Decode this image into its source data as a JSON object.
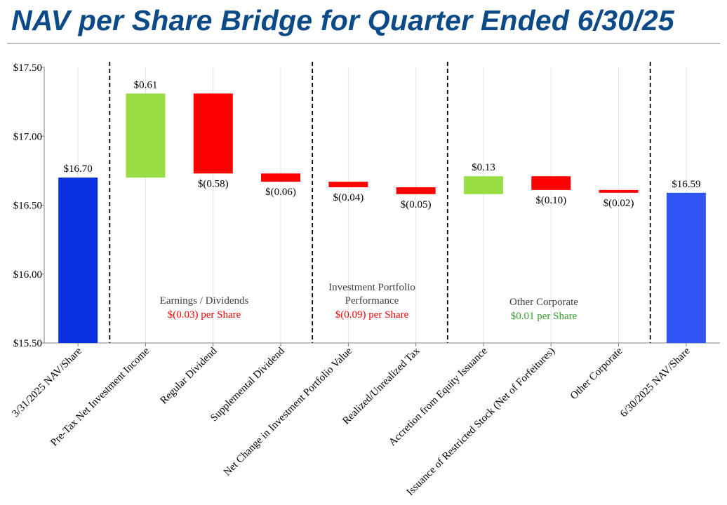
{
  "title": "NAV per Share Bridge for Quarter Ended 6/30/25",
  "chart_data": {
    "type": "waterfall",
    "title": "NAV per Share Bridge for Quarter Ended 6/30/25",
    "xlabel": "",
    "ylabel": "",
    "ylim": [
      15.5,
      17.5
    ],
    "yticks": [
      {
        "value": 15.5,
        "label": "$15.50"
      },
      {
        "value": 16.0,
        "label": "$16.00"
      },
      {
        "value": 16.5,
        "label": "$16.50"
      },
      {
        "value": 17.0,
        "label": "$17.00"
      },
      {
        "value": 17.5,
        "label": "$17.50"
      }
    ],
    "bars": [
      {
        "category": "3/31/2025 NAV/Share",
        "kind": "total",
        "value": 16.7,
        "label": "$16.70"
      },
      {
        "category": "Pre-Tax Net Investment Income",
        "kind": "delta",
        "value": 0.61,
        "label": "$0.61"
      },
      {
        "category": "Regular Dividend",
        "kind": "delta",
        "value": -0.58,
        "label": "$(0.58)"
      },
      {
        "category": "Supplemental Dividend",
        "kind": "delta",
        "value": -0.06,
        "label": "$(0.06)"
      },
      {
        "category": "Net Change in Investment Portfolio Value",
        "kind": "delta",
        "value": -0.04,
        "label": "$(0.04)"
      },
      {
        "category": "Realized/Unrealized Tax",
        "kind": "delta",
        "value": -0.05,
        "label": "$(0.05)"
      },
      {
        "category": "Accretion from Equity Issuance",
        "kind": "delta",
        "value": 0.13,
        "label": "$0.13"
      },
      {
        "category": "Issuance of Restricted Stock (Net of Forfeitures)",
        "kind": "delta",
        "value": -0.1,
        "label": "$(0.10)"
      },
      {
        "category": "Other Corporate",
        "kind": "delta",
        "value": -0.02,
        "label": "$(0.02)"
      },
      {
        "category": "6/30/2025 NAV/Share",
        "kind": "total",
        "value": 16.59,
        "label": "$16.59"
      }
    ],
    "groups": [
      {
        "name": "Earnings / Dividends",
        "summary": "$(0.03) per Share",
        "summary_color": "#ff0000"
      },
      {
        "name": "Investment Portfolio Performance",
        "summary": "$(0.09) per Share",
        "summary_color": "#ff0000"
      },
      {
        "name": "Other Corporate",
        "summary": "$0.01 per Share",
        "summary_color": "#33a02c"
      }
    ],
    "colors": {
      "start_total": "#0a32e0",
      "end_total": "#2f55f2",
      "increase": "#99dd44",
      "decrease": "#ff0000",
      "title": "#0b4a86"
    }
  }
}
